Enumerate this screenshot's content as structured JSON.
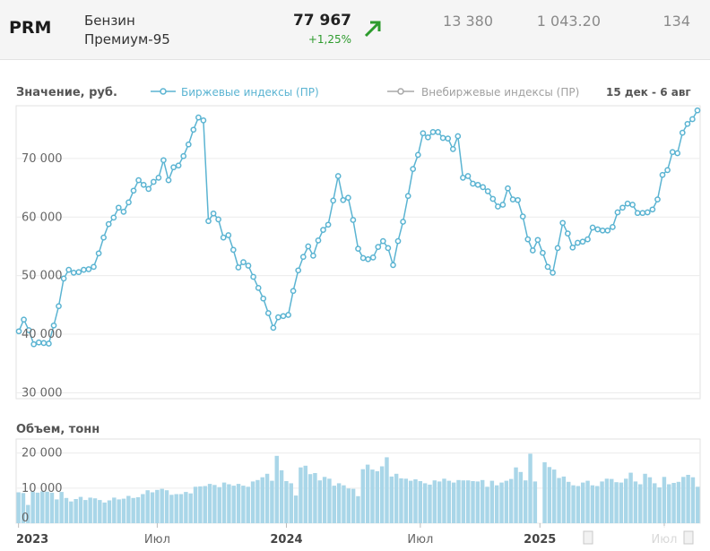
{
  "header": {
    "ticker": "PRM",
    "name_line1": "Бензин",
    "name_line2": "Премиум-95",
    "price": "77 967",
    "change": "+1,25%",
    "trend_color": "#2d9b2d",
    "value1": "13 380",
    "value2": "1 043.20",
    "value3": "134"
  },
  "chart_data": [
    {
      "type": "line",
      "ylabel": "Значение, руб.",
      "ylim": [
        29000,
        79000
      ],
      "yticks": [
        30000,
        40000,
        50000,
        60000,
        70000
      ],
      "ytick_labels": [
        "30 000",
        "40 000",
        "50 000",
        "60 000",
        "70 000"
      ],
      "grid": true,
      "legend_position": "top",
      "period_label": "15 дек - 6 авг",
      "series": [
        {
          "name": "Биржевые индексы (ПР)",
          "color": "#5bb4d2",
          "values": [
            40500,
            42500,
            40700,
            38300,
            38600,
            38500,
            38400,
            41500,
            44800,
            49500,
            51000,
            50500,
            50600,
            51000,
            51100,
            51500,
            53800,
            56500,
            58800,
            59900,
            61600,
            60900,
            62500,
            64500,
            66300,
            65500,
            64800,
            66000,
            66700,
            69700,
            66300,
            68500,
            68800,
            70400,
            72400,
            74900,
            77000,
            76500,
            59300,
            60600,
            59600,
            56500,
            56900,
            54400,
            51400,
            52300,
            51700,
            49800,
            47900,
            46100,
            43600,
            41100,
            42900,
            43100,
            43300,
            47400,
            50900,
            53200,
            55000,
            53400,
            56000,
            57800,
            58700,
            62800,
            67000,
            62900,
            63300,
            59500,
            54600,
            53000,
            52800,
            53100,
            54900,
            55900,
            54700,
            51800,
            55900,
            59200,
            63600,
            68200,
            70600,
            74300,
            73600,
            74500,
            74500,
            73500,
            73400,
            71600,
            73800,
            66700,
            67000,
            65700,
            65500,
            65100,
            64400,
            63100,
            61800,
            62100,
            64900,
            63000,
            62900,
            60100,
            56200,
            54300,
            56100,
            53900,
            51500,
            50500,
            54700,
            59000,
            57200,
            54800,
            55600,
            55800,
            56200,
            58200,
            57900,
            57700,
            57700,
            58300,
            60800,
            61600,
            62300,
            62100,
            60700,
            60700,
            60800,
            61300,
            63000,
            67200,
            68000,
            71100,
            70900,
            74400,
            75900,
            76700,
            78200
          ]
        },
        {
          "name": "Внебиржевые индексы (ПР)",
          "color": "#a8a8a8",
          "values": []
        }
      ]
    },
    {
      "type": "bar",
      "ylabel": "Объем, тонн",
      "ylim": [
        0,
        24000
      ],
      "yticks": [
        0,
        10000,
        20000
      ],
      "ytick_labels": [
        "0",
        "10 000",
        "20 000"
      ],
      "grid": true,
      "xticks": [
        {
          "label": "2023",
          "bold": true,
          "index": 0
        },
        {
          "label": "Июл",
          "bold": false,
          "index": 29
        },
        {
          "label": "2024",
          "bold": true,
          "index": 56
        },
        {
          "label": "Июл",
          "bold": false,
          "index": 84
        },
        {
          "label": "2025",
          "bold": true,
          "index": 109
        },
        {
          "label": "Июл",
          "bold": false,
          "index": 135
        }
      ],
      "series": [
        {
          "name": "",
          "color": "#a9d6e8",
          "values": [
            8800,
            8600,
            5200,
            9000,
            8700,
            9100,
            9000,
            8700,
            6800,
            8900,
            7200,
            6200,
            6900,
            7500,
            6600,
            7300,
            7100,
            6600,
            5900,
            6500,
            7300,
            6800,
            7000,
            7800,
            7200,
            7400,
            8300,
            9400,
            8800,
            9500,
            9800,
            9400,
            8100,
            8300,
            8300,
            8900,
            8500,
            10400,
            10500,
            10600,
            11200,
            10900,
            10300,
            11600,
            11100,
            10700,
            11200,
            10700,
            10400,
            11900,
            12300,
            13100,
            14100,
            12100,
            19200,
            15100,
            12000,
            11400,
            7900,
            15900,
            16400,
            14000,
            14300,
            12200,
            13200,
            12700,
            10700,
            11400,
            10800,
            9900,
            9800,
            7700,
            15400,
            16700,
            15300,
            14800,
            16200,
            18800,
            13300,
            14100,
            12800,
            12700,
            12100,
            12500,
            12000,
            11400,
            11000,
            12200,
            11900,
            12700,
            12100,
            11600,
            12300,
            12200,
            12200,
            12000,
            11900,
            12300,
            10400,
            12100,
            10800,
            11600,
            12100,
            12600,
            15900,
            14600,
            12200,
            19800,
            11900,
            0,
            17400,
            16000,
            15300,
            12900,
            13300,
            11800,
            10800,
            10600,
            11600,
            12100,
            10800,
            10600,
            11900,
            12700,
            12600,
            11700,
            11600,
            12700,
            14400,
            11900,
            11100,
            14100,
            13100,
            11400,
            10200,
            13200,
            11100,
            11500,
            11800,
            13200,
            13800,
            13100,
            10400
          ]
        }
      ]
    }
  ]
}
